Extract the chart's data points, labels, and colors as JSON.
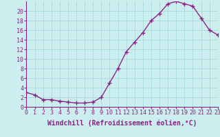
{
  "x": [
    0,
    1,
    2,
    3,
    4,
    5,
    6,
    7,
    8,
    9,
    10,
    11,
    12,
    13,
    14,
    15,
    16,
    17,
    18,
    19,
    20,
    21,
    22,
    23
  ],
  "y": [
    3.0,
    2.5,
    1.5,
    1.5,
    1.2,
    1.0,
    0.8,
    0.8,
    1.0,
    2.0,
    5.0,
    8.0,
    11.5,
    13.5,
    15.5,
    18.0,
    19.5,
    21.5,
    22.0,
    21.5,
    21.0,
    18.5,
    16.0,
    15.0
  ],
  "line_color": "#882288",
  "marker": "+",
  "bg_color": "#cceeee",
  "grid_color": "#aadddd",
  "xlabel": "Windchill (Refroidissement éolien,°C)",
  "ylim": [
    0,
    22
  ],
  "xlim": [
    0,
    23
  ],
  "yticks": [
    0,
    2,
    4,
    6,
    8,
    10,
    12,
    14,
    16,
    18,
    20
  ],
  "xticks": [
    0,
    1,
    2,
    3,
    4,
    5,
    6,
    7,
    8,
    9,
    10,
    11,
    12,
    13,
    14,
    15,
    16,
    17,
    18,
    19,
    20,
    21,
    22,
    23
  ],
  "tick_label_fontsize": 6,
  "xlabel_fontsize": 7
}
